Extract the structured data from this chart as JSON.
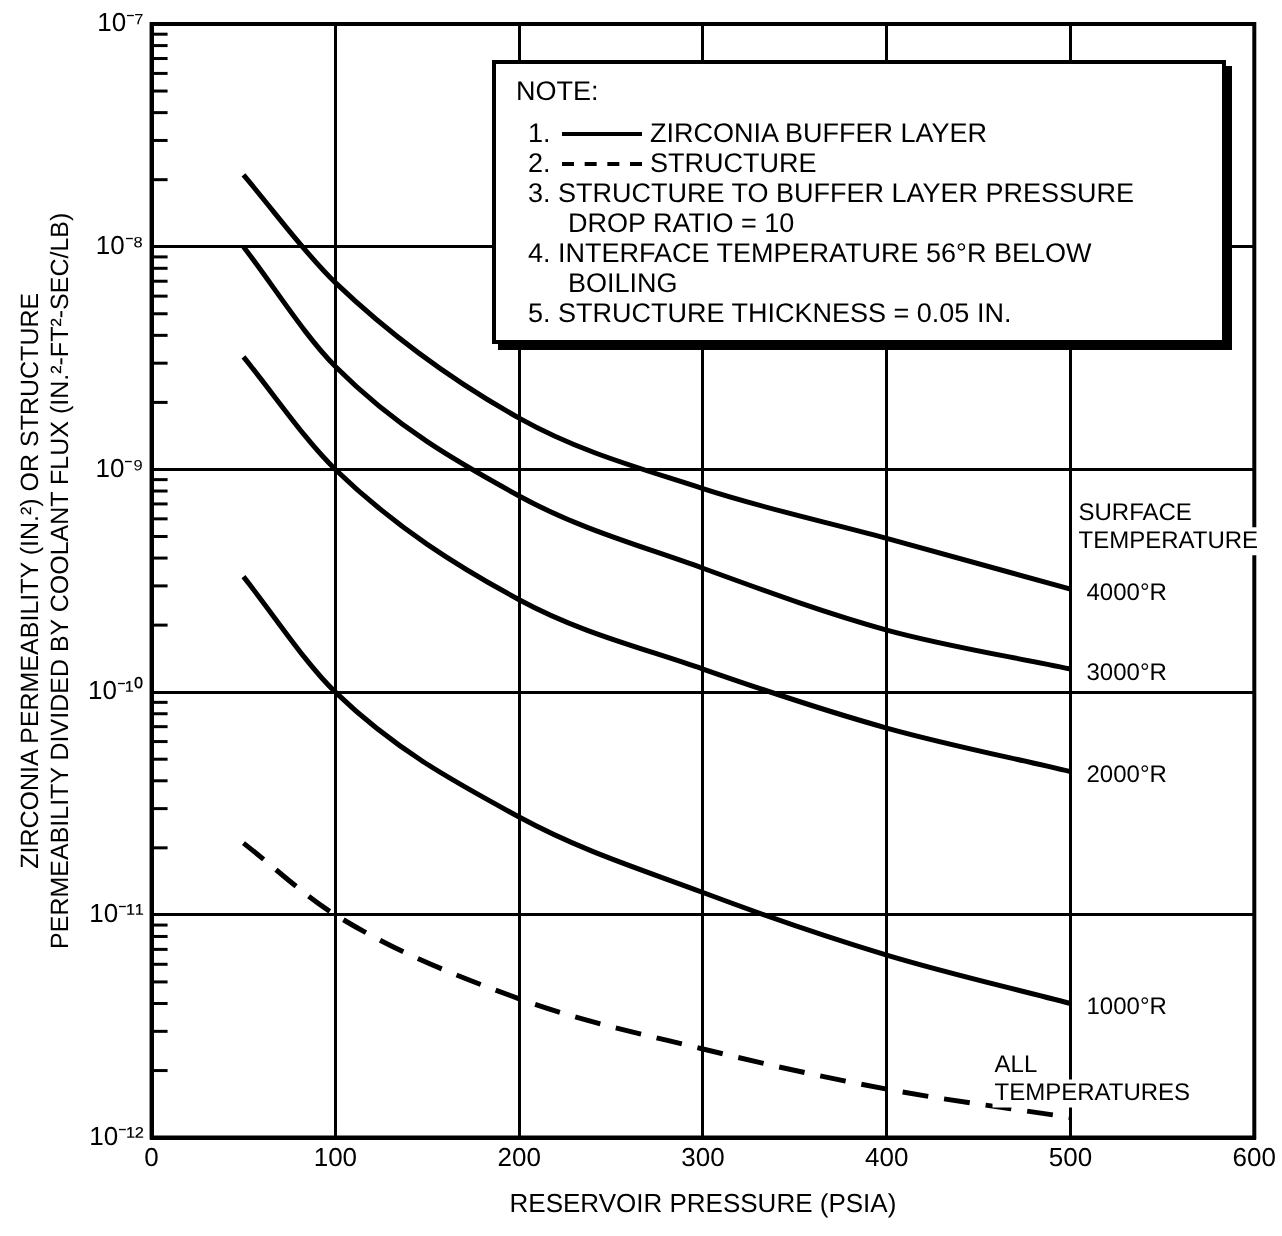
{
  "chart_data": {
    "type": "line",
    "xlabel": "RESERVOIR PRESSURE (PSIA)",
    "ylabel": "ZIRCONIA PERMEABILITY (IN.²) OR STRUCTURE\nPERMEABILITY DIVIDED BY COOLANT FLUX (IN.²-FT²-SEC/LB)",
    "legend_title": "SURFACE TEMPERATURE",
    "x": [
      50,
      100,
      200,
      300,
      400,
      500
    ],
    "series": [
      {
        "name": "4000°R",
        "color": "#000000",
        "values": [
          2.1e-08,
          6.9e-09,
          1.7e-09,
          8.2e-10,
          4.9e-10,
          2.9e-10
        ]
      },
      {
        "name": "3000°R",
        "color": "#000000",
        "values": [
          1e-08,
          2.9e-09,
          7.6e-10,
          3.6e-10,
          1.9e-10,
          1.27e-10
        ]
      },
      {
        "name": "2000°R",
        "color": "#000000",
        "values": [
          3.2e-09,
          1e-09,
          2.6e-10,
          1.27e-10,
          6.9e-11,
          4.4e-11
        ]
      },
      {
        "name": "1000°R",
        "color": "#000000",
        "values": [
          3.3e-10,
          1e-10,
          2.75e-11,
          1.26e-11,
          6.6e-12,
          4e-12
        ]
      },
      {
        "name": "ALL TEMPERATURES",
        "color": "#000000",
        "line_style": "dashed",
        "values": [
          2.1e-11,
          1e-11,
          4.2e-12,
          2.5e-12,
          1.65e-12,
          1.23e-12
        ]
      }
    ],
    "xlim": [
      0,
      600
    ],
    "xticks": [
      0,
      100,
      200,
      300,
      400,
      500,
      600
    ],
    "log": true,
    "ylim": [
      1e-12,
      1e-07
    ],
    "yticks": [
      {
        "value": 1e-12,
        "label": "10⁻¹²"
      },
      {
        "value": 2e-12,
        "label": null
      },
      {
        "value": 3e-12,
        "label": null
      },
      {
        "value": 4e-12,
        "label": null
      },
      {
        "value": 5e-12,
        "label": null
      },
      {
        "value": 6e-12,
        "label": null
      },
      {
        "value": 7e-12,
        "label": null
      },
      {
        "value": 8e-12,
        "label": null
      },
      {
        "value": 9e-12,
        "label": null
      },
      {
        "value": 1e-11,
        "label": "10⁻¹¹"
      },
      {
        "value": 2e-11,
        "label": null
      },
      {
        "value": 3e-11,
        "label": null
      },
      {
        "value": 4e-11,
        "label": null
      },
      {
        "value": 5e-11,
        "label": null
      },
      {
        "value": 6e-11,
        "label": null
      },
      {
        "value": 7e-11,
        "label": null
      },
      {
        "value": 8e-11,
        "label": null
      },
      {
        "value": 9e-11,
        "label": null
      },
      {
        "value": 1e-10,
        "label": "10⁻¹⁰"
      },
      {
        "value": 2e-10,
        "label": null
      },
      {
        "value": 3e-10,
        "label": null
      },
      {
        "value": 4e-10,
        "label": null
      },
      {
        "value": 5e-10,
        "label": null
      },
      {
        "value": 6e-10,
        "label": null
      },
      {
        "value": 7e-10,
        "label": null
      },
      {
        "value": 8e-10,
        "label": null
      },
      {
        "value": 9e-10,
        "label": null
      },
      {
        "value": 1e-09,
        "label": "10⁻⁹"
      },
      {
        "value": 2e-09,
        "label": null
      },
      {
        "value": 3e-09,
        "label": null
      },
      {
        "value": 4e-09,
        "label": null
      },
      {
        "value": 5e-09,
        "label": null
      },
      {
        "value": 6e-09,
        "label": null
      },
      {
        "value": 7e-09,
        "label": null
      },
      {
        "value": 8e-09,
        "label": null
      },
      {
        "value": 9e-09,
        "label": null
      },
      {
        "value": 1e-08,
        "label": "10⁻⁸"
      },
      {
        "value": 2e-08,
        "label": null
      },
      {
        "value": 3e-08,
        "label": null
      },
      {
        "value": 4e-08,
        "label": null
      },
      {
        "value": 5e-08,
        "label": null
      },
      {
        "value": 6e-08,
        "label": null
      },
      {
        "value": 7e-08,
        "label": null
      },
      {
        "value": 8e-08,
        "label": null
      },
      {
        "value": 9e-08,
        "label": null
      },
      {
        "value": 1e-07,
        "label": "10⁻⁷"
      }
    ],
    "grid": true,
    "marker": "none",
    "line_style": "solid",
    "annotations": [
      "NOTE:",
      "1. ZIRCONIA BUFFER LAYER",
      "2. STRUCTURE",
      "3. STRUCTURE TO BUFFER LAYER PRESSURE DROP RATIO = 10",
      "4. INTERFACE TEMPERATURE 56°R BELOW BOILING",
      "5. STRUCTURE THICKNESS = 0.05 IN."
    ]
  }
}
